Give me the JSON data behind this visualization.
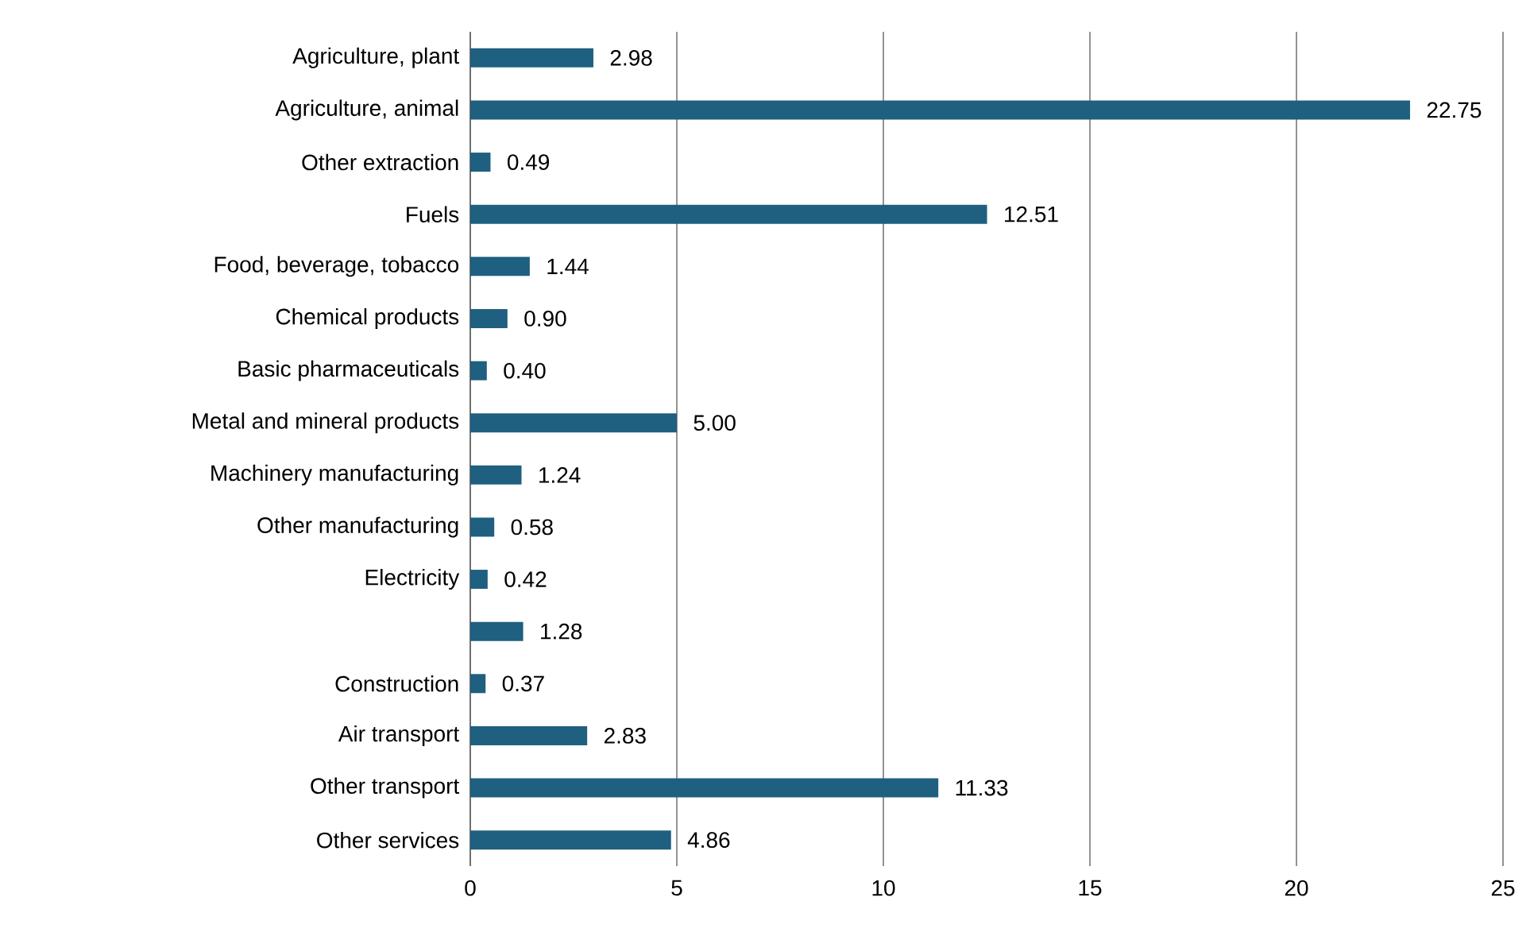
{
  "chart_data": {
    "type": "bar",
    "orientation": "horizontal",
    "categories": [
      "Agriculture, plant",
      "Agriculture, animal",
      "Other extraction",
      "Fuels",
      "Food, beverage, tobacco",
      "Chemical products",
      "Basic pharmaceuticals",
      "Metal and mineral products",
      "Machinery manufacturing",
      "Other manufacturing",
      "Electricity",
      null,
      "Construction",
      "Air transport",
      "Other transport",
      "Other services"
    ],
    "values": [
      2.98,
      22.75,
      0.49,
      12.51,
      1.44,
      0.9,
      0.4,
      5.0,
      1.24,
      0.58,
      0.42,
      1.28,
      0.37,
      2.83,
      11.33,
      4.86
    ],
    "value_labels": [
      "2.98",
      "22.75",
      "0.49",
      "12.51",
      "1.44",
      "0.90",
      "0.40",
      "5.00",
      "1.24",
      "0.58",
      "0.42",
      "1.28",
      "0.37",
      "2.83",
      "11.33",
      "4.86"
    ],
    "color": "#1f5f7f",
    "xlim": [
      0,
      25
    ],
    "xticks": [
      0,
      5,
      10,
      15,
      20,
      25
    ],
    "grid": "x"
  }
}
